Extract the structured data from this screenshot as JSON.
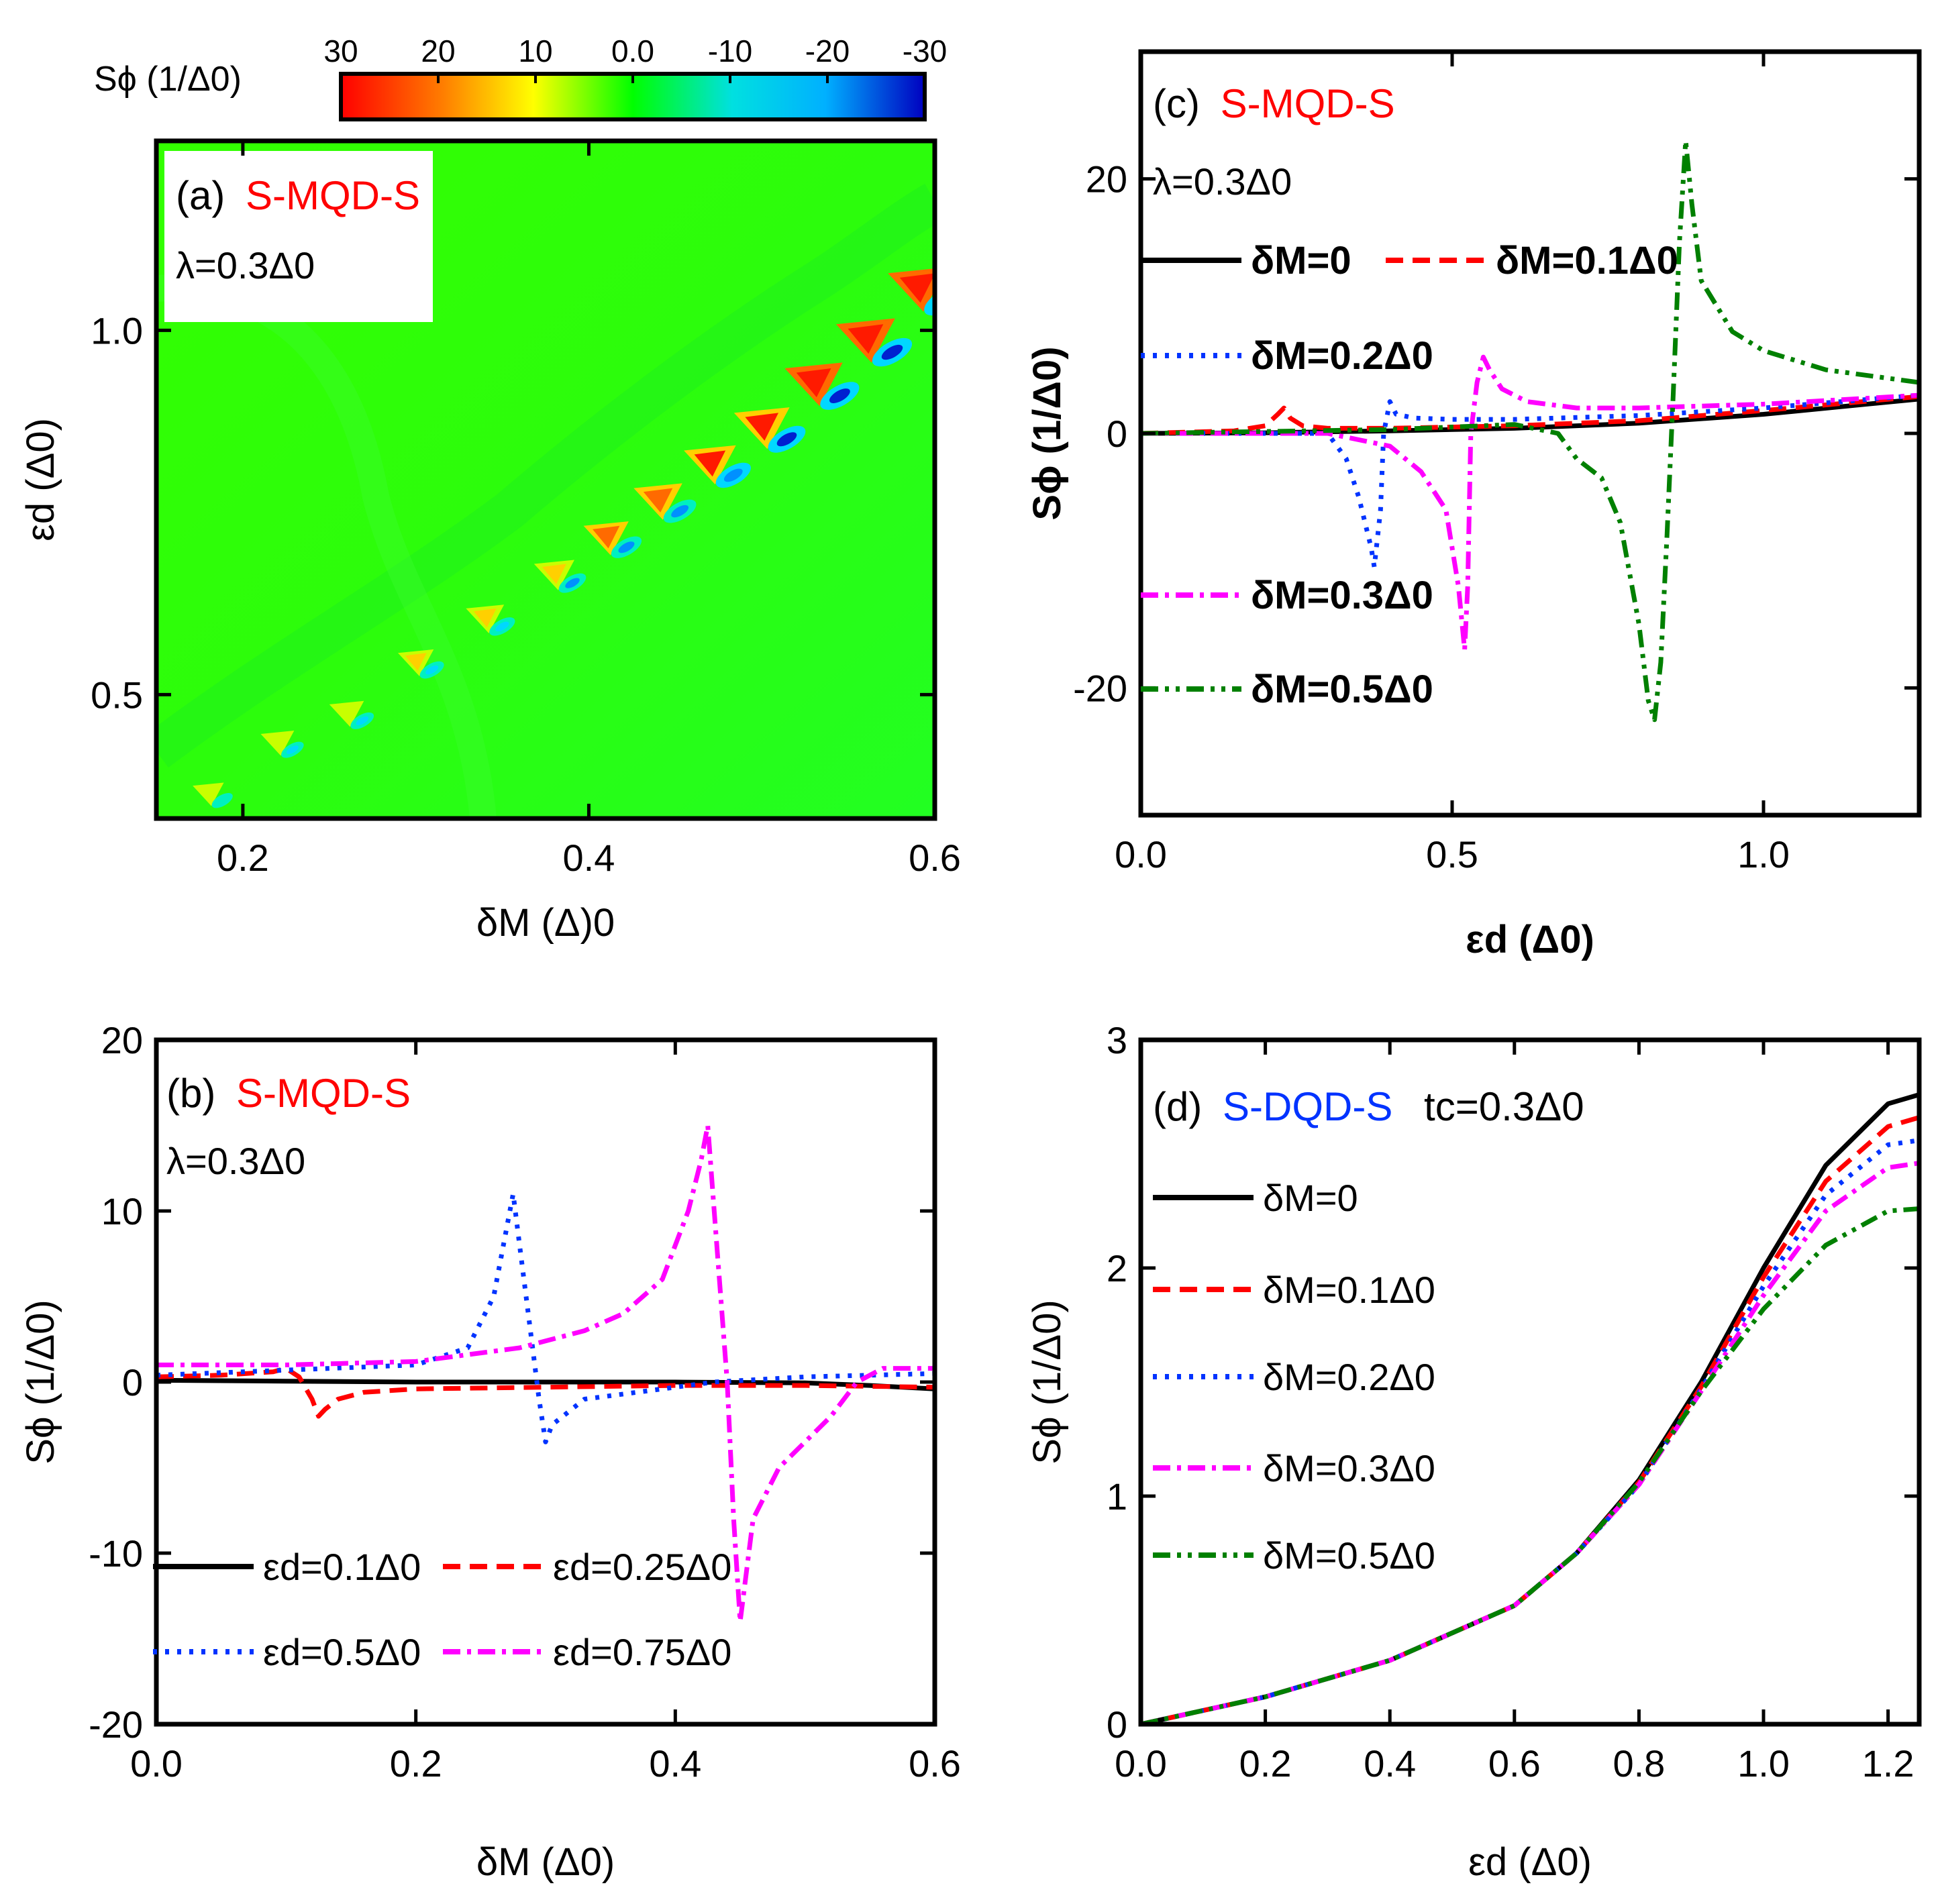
{
  "figure": {
    "description_free": true
  },
  "chart_data": [
    {
      "id": "a",
      "type": "heatmap",
      "panel_label": "(a)",
      "system_label": "S-MQD-S",
      "param_label": "λ=0.3Δ0",
      "xlabel": "δM (Δ)0",
      "ylabel": "εd (Δ0)",
      "xlim": [
        0.15,
        0.6
      ],
      "ylim": [
        0.33,
        1.26
      ],
      "xticks": [
        0.2,
        0.4,
        0.6
      ],
      "xtick_labels": [
        "0.2",
        "0.4",
        "0.6"
      ],
      "yticks": [
        0.5,
        1.0
      ],
      "ytick_labels": [
        "0.5",
        "1.0"
      ],
      "colorbar": {
        "label": "Sϕ (1/Δ0)",
        "ticks": [
          30,
          20,
          10,
          0.0,
          -10,
          -20,
          -30
        ],
        "tick_labels": [
          "30",
          "20",
          "10",
          "0.0",
          "-10",
          "-20",
          "-30"
        ],
        "range": [
          30,
          -30
        ]
      },
      "resonance_band": {
        "description": "alternating positive/negative lobes along the line εd ≈ 0.14 + 1.6·δM",
        "lobes": [
          {
            "x": 0.18,
            "y": 0.36,
            "peak": 6,
            "dip": -10
          },
          {
            "x": 0.22,
            "y": 0.43,
            "peak": 8,
            "dip": -12
          },
          {
            "x": 0.26,
            "y": 0.47,
            "peak": 9,
            "dip": -13
          },
          {
            "x": 0.3,
            "y": 0.54,
            "peak": 10,
            "dip": -15
          },
          {
            "x": 0.34,
            "y": 0.6,
            "peak": 12,
            "dip": -16
          },
          {
            "x": 0.38,
            "y": 0.66,
            "peak": 14,
            "dip": -18
          },
          {
            "x": 0.41,
            "y": 0.71,
            "peak": 18,
            "dip": -20
          },
          {
            "x": 0.44,
            "y": 0.76,
            "peak": 21,
            "dip": -20
          },
          {
            "x": 0.47,
            "y": 0.81,
            "peak": 24,
            "dip": -22
          },
          {
            "x": 0.5,
            "y": 0.86,
            "peak": 27,
            "dip": -24
          },
          {
            "x": 0.53,
            "y": 0.92,
            "peak": 29,
            "dip": -26
          },
          {
            "x": 0.56,
            "y": 0.98,
            "peak": 30,
            "dip": -28
          },
          {
            "x": 0.59,
            "y": 1.05,
            "peak": 30,
            "dip": -30
          }
        ]
      }
    },
    {
      "id": "b",
      "type": "line",
      "panel_label": "(b)",
      "system_label": "S-MQD-S",
      "param_label": "λ=0.3Δ0",
      "xlabel": "δM (Δ0)",
      "ylabel": "Sϕ (1/Δ0)",
      "xlim": [
        0.0,
        0.6
      ],
      "ylim": [
        -20,
        20
      ],
      "xticks": [
        0.0,
        0.2,
        0.4,
        0.6
      ],
      "xtick_labels": [
        "0.0",
        "0.2",
        "0.4",
        "0.6"
      ],
      "yticks": [
        -20,
        -10,
        0,
        10,
        20
      ],
      "ytick_labels": [
        "-20",
        "-10",
        "0",
        "10",
        "20"
      ],
      "series": [
        {
          "name": "εd=0.1Δ0",
          "color": "#000000",
          "dash": "solid",
          "x": [
            0.0,
            0.1,
            0.2,
            0.3,
            0.4,
            0.5,
            0.55,
            0.6
          ],
          "y": [
            0.1,
            0.05,
            0.0,
            0.0,
            0.0,
            -0.05,
            -0.2,
            -0.4
          ]
        },
        {
          "name": "εd=0.25Δ0",
          "color": "#ff0000",
          "dash": "dashed",
          "x": [
            0.0,
            0.05,
            0.09,
            0.1,
            0.11,
            0.12,
            0.125,
            0.13,
            0.14,
            0.16,
            0.2,
            0.3,
            0.4,
            0.5,
            0.6
          ],
          "y": [
            0.3,
            0.4,
            0.6,
            0.8,
            0.3,
            -1.0,
            -2.0,
            -1.6,
            -1.0,
            -0.6,
            -0.4,
            -0.3,
            -0.2,
            -0.2,
            -0.3
          ]
        },
        {
          "name": "εd=0.5Δ0",
          "color": "#0033ff",
          "dash": "dotted",
          "x": [
            0.0,
            0.1,
            0.2,
            0.24,
            0.26,
            0.27,
            0.275,
            0.28,
            0.29,
            0.295,
            0.3,
            0.305,
            0.33,
            0.38,
            0.43,
            0.5,
            0.6
          ],
          "y": [
            0.4,
            0.7,
            1.0,
            2.0,
            5.0,
            9.0,
            11.0,
            8.0,
            2.0,
            -1.0,
            -3.5,
            -2.5,
            -1.0,
            -0.5,
            0.0,
            0.3,
            0.5
          ]
        },
        {
          "name": "εd=0.75Δ0",
          "color": "#ff00ff",
          "dash": "dashdot",
          "x": [
            0.0,
            0.1,
            0.2,
            0.28,
            0.33,
            0.36,
            0.39,
            0.41,
            0.42,
            0.425,
            0.43,
            0.44,
            0.445,
            0.45,
            0.46,
            0.48,
            0.5,
            0.52,
            0.54,
            0.56,
            0.6
          ],
          "y": [
            1.0,
            1.0,
            1.2,
            2.0,
            3.0,
            4.0,
            6.0,
            10.0,
            13.0,
            15.0,
            10.0,
            0.0,
            -8.0,
            -14.0,
            -8.0,
            -5.0,
            -3.5,
            -2.0,
            0.0,
            0.8,
            0.8
          ]
        }
      ]
    },
    {
      "id": "c",
      "type": "line",
      "panel_label": "(c)",
      "system_label": "S-MQD-S",
      "param_label": "λ=0.3Δ0",
      "xlabel": "εd (Δ0)",
      "ylabel": "Sϕ (1/Δ0)",
      "xlim": [
        0.0,
        1.25
      ],
      "ylim": [
        -30,
        30
      ],
      "xticks": [
        0.0,
        0.5,
        1.0
      ],
      "xtick_labels": [
        "0.0",
        "0.5",
        "1.0"
      ],
      "yticks": [
        -20,
        0,
        20
      ],
      "ytick_labels": [
        "-20",
        "0",
        "20"
      ],
      "series": [
        {
          "name": "δM=0",
          "color": "#000000",
          "dash": "solid",
          "x": [
            0.0,
            0.2,
            0.4,
            0.6,
            0.8,
            1.0,
            1.25
          ],
          "y": [
            0.0,
            0.05,
            0.2,
            0.4,
            0.8,
            1.5,
            2.7
          ]
        },
        {
          "name": "δM=0.1Δ0",
          "color": "#ff0000",
          "dash": "dashed",
          "x": [
            0.0,
            0.15,
            0.2,
            0.22,
            0.23,
            0.24,
            0.26,
            0.3,
            0.4,
            0.6,
            0.8,
            1.0,
            1.25
          ],
          "y": [
            0.0,
            0.2,
            0.6,
            1.5,
            2.0,
            1.2,
            0.6,
            0.4,
            0.4,
            0.6,
            1.0,
            1.8,
            2.9
          ]
        },
        {
          "name": "δM=0.2Δ0",
          "color": "#0033ff",
          "dash": "dotted",
          "x": [
            0.0,
            0.3,
            0.33,
            0.35,
            0.37,
            0.375,
            0.385,
            0.39,
            0.4,
            0.41,
            0.44,
            0.5,
            0.6,
            0.8,
            1.0,
            1.25
          ],
          "y": [
            0.0,
            0.0,
            -2.0,
            -5.0,
            -9.0,
            -10.5,
            -6.0,
            0.0,
            2.5,
            1.5,
            1.2,
            1.1,
            1.1,
            1.4,
            2.0,
            3.0
          ]
        },
        {
          "name": "δM=0.3Δ0",
          "color": "#ff00ff",
          "dash": "dashdot",
          "x": [
            0.0,
            0.3,
            0.4,
            0.45,
            0.49,
            0.51,
            0.52,
            0.525,
            0.53,
            0.54,
            0.55,
            0.56,
            0.58,
            0.62,
            0.7,
            0.8,
            1.0,
            1.25
          ],
          "y": [
            0.0,
            0.0,
            -1.0,
            -3.0,
            -6.0,
            -12.0,
            -17.0,
            -12.0,
            0.0,
            4.0,
            6.0,
            5.0,
            3.5,
            2.5,
            2.0,
            2.0,
            2.3,
            3.0
          ]
        },
        {
          "name": "δM=0.5Δ0",
          "color": "#008000",
          "dash": "dashdotdot",
          "x": [
            0.0,
            0.4,
            0.6,
            0.67,
            0.7,
            0.74,
            0.77,
            0.8,
            0.815,
            0.825,
            0.835,
            0.845,
            0.855,
            0.865,
            0.875,
            0.885,
            0.9,
            0.95,
            1.0,
            1.1,
            1.25
          ],
          "y": [
            0.0,
            0.3,
            0.7,
            0.0,
            -2.0,
            -3.5,
            -7.0,
            -15.0,
            -21.0,
            -22.5,
            -18.0,
            -8.0,
            3.0,
            15.0,
            23.0,
            18.0,
            12.0,
            8.0,
            6.5,
            5.0,
            4.0
          ]
        }
      ]
    },
    {
      "id": "d",
      "type": "line",
      "panel_label": "(d)",
      "system_label": "S-DQD-S",
      "param_label": "tc=0.3Δ0",
      "xlabel": "εd (Δ0)",
      "ylabel": "Sϕ (1/Δ0)",
      "xlim": [
        0.0,
        1.25
      ],
      "ylim": [
        0,
        3
      ],
      "xticks": [
        0.0,
        0.2,
        0.4,
        0.6,
        0.8,
        1.0,
        1.2
      ],
      "xtick_labels": [
        "0.0",
        "0.2",
        "0.4",
        "0.6",
        "0.8",
        "1.0",
        "1.2"
      ],
      "yticks": [
        0,
        1,
        2,
        3
      ],
      "ytick_labels": [
        "0",
        "1",
        "2",
        "3"
      ],
      "series": [
        {
          "name": "δM=0",
          "color": "#000000",
          "dash": "solid",
          "x": [
            0.0,
            0.2,
            0.4,
            0.6,
            0.7,
            0.8,
            0.9,
            1.0,
            1.1,
            1.2,
            1.25
          ],
          "y": [
            0.0,
            0.12,
            0.28,
            0.52,
            0.75,
            1.07,
            1.5,
            2.0,
            2.45,
            2.72,
            2.76
          ]
        },
        {
          "name": "δM=0.1Δ0",
          "color": "#ff0000",
          "dash": "dashed",
          "x": [
            0.0,
            0.2,
            0.4,
            0.6,
            0.7,
            0.8,
            0.9,
            1.0,
            1.1,
            1.2,
            1.25
          ],
          "y": [
            0.0,
            0.12,
            0.28,
            0.52,
            0.75,
            1.06,
            1.48,
            1.96,
            2.38,
            2.62,
            2.66
          ]
        },
        {
          "name": "δM=0.2Δ0",
          "color": "#0033ff",
          "dash": "dotted",
          "x": [
            0.0,
            0.2,
            0.4,
            0.6,
            0.7,
            0.8,
            0.9,
            1.0,
            1.1,
            1.2,
            1.25
          ],
          "y": [
            0.0,
            0.12,
            0.28,
            0.52,
            0.75,
            1.05,
            1.47,
            1.92,
            2.32,
            2.54,
            2.56
          ]
        },
        {
          "name": "δM=0.3Δ0",
          "color": "#ff00ff",
          "dash": "dashdot",
          "x": [
            0.0,
            0.2,
            0.4,
            0.6,
            0.7,
            0.8,
            0.9,
            1.0,
            1.1,
            1.2,
            1.25
          ],
          "y": [
            0.0,
            0.12,
            0.28,
            0.52,
            0.75,
            1.05,
            1.46,
            1.88,
            2.25,
            2.44,
            2.46
          ]
        },
        {
          "name": "δM=0.5Δ0",
          "color": "#008000",
          "dash": "dashdotdot",
          "x": [
            0.0,
            0.2,
            0.4,
            0.6,
            0.7,
            0.8,
            0.9,
            1.0,
            1.1,
            1.2,
            1.25
          ],
          "y": [
            0.0,
            0.12,
            0.28,
            0.52,
            0.75,
            1.06,
            1.46,
            1.82,
            2.1,
            2.25,
            2.26
          ]
        }
      ]
    }
  ]
}
